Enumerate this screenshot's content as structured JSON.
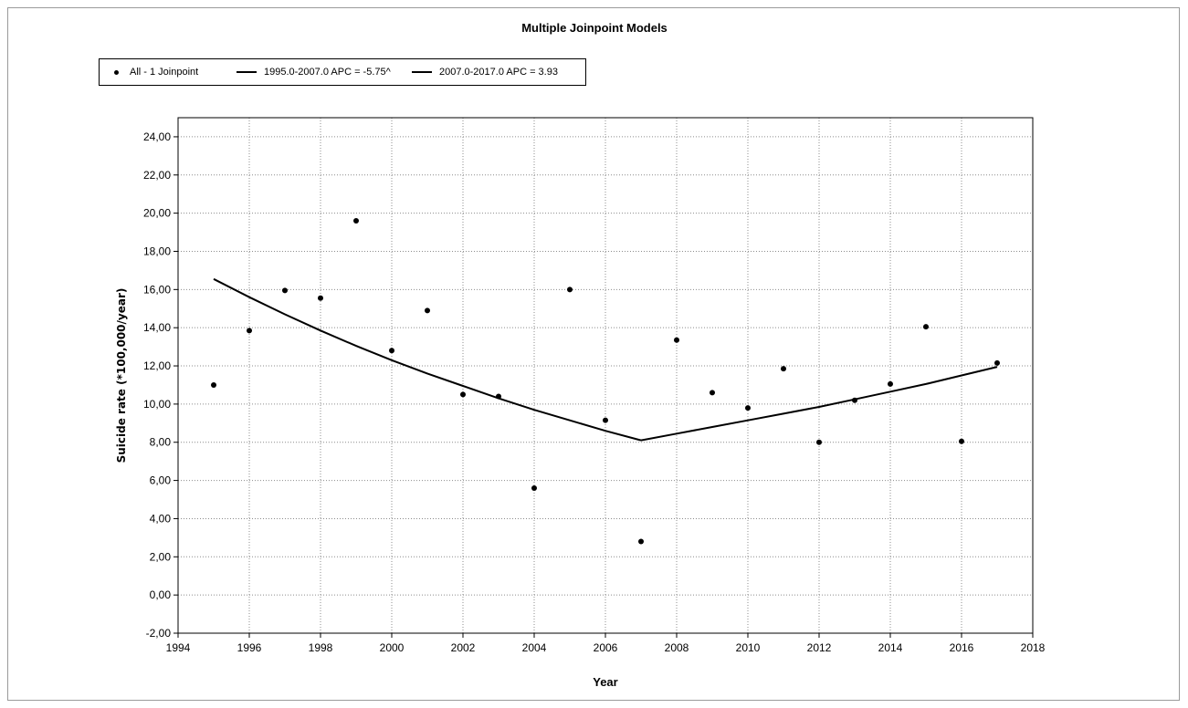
{
  "chart_data": {
    "type": "scatter",
    "title": "Multiple Joinpoint Models",
    "xlabel": "Year",
    "ylabel": "Suicide rate (*100,000/year)",
    "xlim": [
      1994,
      2018
    ],
    "ylim": [
      -2,
      25
    ],
    "x_ticks": [
      "1994",
      "1996",
      "1998",
      "2000",
      "2002",
      "2004",
      "2006",
      "2008",
      "2010",
      "2012",
      "2014",
      "2016",
      "2018"
    ],
    "y_ticks": [
      "-2,00",
      "0,00",
      "2,00",
      "4,00",
      "6,00",
      "8,00",
      "10,00",
      "12,00",
      "14,00",
      "16,00",
      "18,00",
      "20,00",
      "22,00",
      "24,00"
    ],
    "grid": true,
    "legend_position": "top-left",
    "series": [
      {
        "name": "All - 1 Joinpoint",
        "kind": "points",
        "x": [
          1995,
          1996,
          1997,
          1998,
          1999,
          2000,
          2001,
          2002,
          2003,
          2004,
          2005,
          2006,
          2007,
          2008,
          2009,
          2010,
          2011,
          2012,
          2013,
          2014,
          2015,
          2016,
          2017
        ],
        "y": [
          11.0,
          13.85,
          15.95,
          15.55,
          19.6,
          12.8,
          14.9,
          10.5,
          10.4,
          5.6,
          16.0,
          9.15,
          2.8,
          13.35,
          10.6,
          9.8,
          11.85,
          8.0,
          10.2,
          11.05,
          14.05,
          8.05,
          12.15
        ]
      },
      {
        "name": "1995.0-2007.0 APC = -5.75^",
        "kind": "line",
        "x": [
          1995,
          1996,
          1997,
          1998,
          1999,
          2000,
          2001,
          2002,
          2003,
          2004,
          2005,
          2006,
          2007
        ],
        "y": [
          16.55,
          15.6,
          14.7,
          13.85,
          13.05,
          12.3,
          11.6,
          10.95,
          10.3,
          9.7,
          9.15,
          8.6,
          8.1
        ]
      },
      {
        "name": "2007.0-2017.0 APC = 3.93",
        "kind": "line",
        "x": [
          2007,
          2008,
          2009,
          2010,
          2011,
          2012,
          2013,
          2014,
          2015,
          2016,
          2017
        ],
        "y": [
          8.1,
          8.45,
          8.8,
          9.15,
          9.5,
          9.85,
          10.25,
          10.65,
          11.05,
          11.5,
          11.95
        ]
      }
    ]
  }
}
